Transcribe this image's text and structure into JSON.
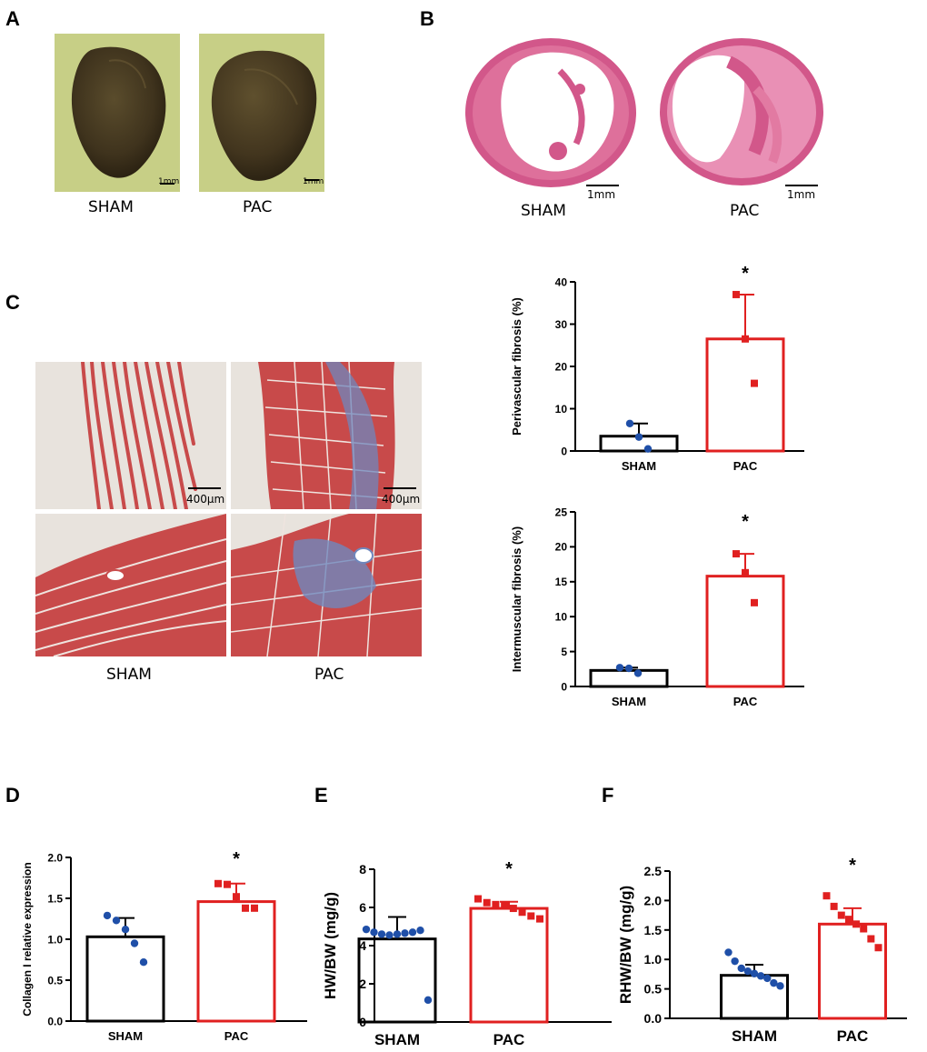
{
  "panels": {
    "A": {
      "letter": "A",
      "labels": [
        "SHAM",
        "PAC"
      ],
      "scale_label": "1mm",
      "colors": {
        "background": "#c7cf86",
        "heart": "#4a3d23"
      }
    },
    "B": {
      "letter": "B",
      "labels": [
        "SHAM",
        "PAC"
      ],
      "scale_label": "1mm",
      "colors": {
        "tissue": "#d2578a",
        "tissue_light": "#ef9fbf"
      }
    },
    "C": {
      "letter": "C",
      "labels": [
        "SHAM",
        "PAC"
      ],
      "scale_label": "400μm",
      "colors": {
        "muscle": "#c84a4a",
        "collagen": "#6f87bd",
        "background": "#e8e3dd"
      }
    },
    "D": {
      "letter": "D"
    },
    "E": {
      "letter": "E"
    },
    "F": {
      "letter": "F"
    }
  },
  "chart_data": [
    {
      "id": "perivascular",
      "type": "bar",
      "categories": [
        "SHAM",
        "PAC"
      ],
      "ylabel": "Perivascular fibrosis (%)",
      "ylim": [
        0,
        40
      ],
      "yticks": [
        0,
        10,
        20,
        30,
        40
      ],
      "series": [
        {
          "values": [
            3.5,
            26.5
          ],
          "errors": [
            3.0,
            10.5
          ]
        }
      ],
      "points": [
        [
          6.5,
          3.3,
          0.5
        ],
        [
          37,
          26.5,
          16
        ]
      ],
      "annotations": [
        {
          "text": "*",
          "category": "PAC"
        }
      ],
      "colors": [
        "#000000",
        "#e02020"
      ],
      "point_colors": [
        "#1f4fa8",
        "#e02020"
      ],
      "markers": [
        "circle",
        "square"
      ]
    },
    {
      "id": "intermuscular",
      "type": "bar",
      "categories": [
        "SHAM",
        "PAC"
      ],
      "ylabel": "Intermuscular fibrosis (%)",
      "ylim": [
        0,
        25
      ],
      "yticks": [
        0,
        5,
        10,
        15,
        20,
        25
      ],
      "series": [
        {
          "values": [
            2.3,
            15.8
          ],
          "errors": [
            0.4,
            3.2
          ]
        }
      ],
      "points": [
        [
          2.7,
          2.6,
          1.9
        ],
        [
          19,
          16.3,
          12
        ]
      ],
      "annotations": [
        {
          "text": "*",
          "category": "PAC"
        }
      ],
      "colors": [
        "#000000",
        "#e02020"
      ],
      "point_colors": [
        "#1f4fa8",
        "#e02020"
      ],
      "markers": [
        "circle",
        "square"
      ]
    },
    {
      "id": "collagen",
      "type": "bar",
      "categories": [
        "SHAM",
        "PAC"
      ],
      "ylabel": "Collagen I relative expression",
      "ylim": [
        0,
        2.0
      ],
      "yticks": [
        "0.0",
        "0.5",
        "1.0",
        "1.5",
        "2.0"
      ],
      "series": [
        {
          "values": [
            1.03,
            1.46
          ],
          "errors": [
            0.23,
            0.22
          ]
        }
      ],
      "points": [
        [
          1.29,
          1.23,
          1.12,
          0.95,
          0.72
        ],
        [
          1.68,
          1.67,
          1.52,
          1.38,
          1.38
        ]
      ],
      "annotations": [
        {
          "text": "*",
          "category": "PAC"
        }
      ],
      "colors": [
        "#000000",
        "#e02020"
      ],
      "point_colors": [
        "#1f4fa8",
        "#e02020"
      ],
      "markers": [
        "circle",
        "square"
      ]
    },
    {
      "id": "hwbw",
      "type": "bar",
      "categories": [
        "SHAM",
        "PAC"
      ],
      "ylabel": "HW/BW (mg/g)",
      "ylim": [
        0,
        8
      ],
      "yticks": [
        0,
        2,
        4,
        6,
        8
      ],
      "series": [
        {
          "values": [
            4.35,
            5.95
          ],
          "errors": [
            1.15,
            0.35
          ]
        }
      ],
      "points": [
        [
          4.85,
          4.7,
          4.6,
          4.55,
          4.6,
          4.65,
          4.7,
          4.8,
          1.15
        ],
        [
          6.45,
          6.25,
          6.15,
          6.1,
          5.95,
          5.75,
          5.55,
          5.4
        ]
      ],
      "annotations": [
        {
          "text": "*",
          "category": "PAC"
        }
      ],
      "colors": [
        "#000000",
        "#e02020"
      ],
      "point_colors": [
        "#1f4fa8",
        "#e02020"
      ],
      "markers": [
        "circle",
        "square"
      ]
    },
    {
      "id": "rhwbw",
      "type": "bar",
      "categories": [
        "SHAM",
        "PAC"
      ],
      "ylabel": "RHW/BW (mg/g)",
      "ylim": [
        0,
        2.5
      ],
      "yticks": [
        "0.0",
        "0.5",
        "1.0",
        "1.5",
        "2.0",
        "2.5"
      ],
      "series": [
        {
          "values": [
            0.73,
            1.6
          ],
          "errors": [
            0.18,
            0.27
          ]
        }
      ],
      "points": [
        [
          1.12,
          0.97,
          0.85,
          0.8,
          0.76,
          0.72,
          0.68,
          0.6,
          0.55
        ],
        [
          2.08,
          1.9,
          1.75,
          1.68,
          1.6,
          1.52,
          1.35,
          1.2
        ]
      ],
      "annotations": [
        {
          "text": "*",
          "category": "PAC"
        }
      ],
      "colors": [
        "#000000",
        "#e02020"
      ],
      "point_colors": [
        "#1f4fa8",
        "#e02020"
      ],
      "markers": [
        "circle",
        "square"
      ]
    }
  ]
}
